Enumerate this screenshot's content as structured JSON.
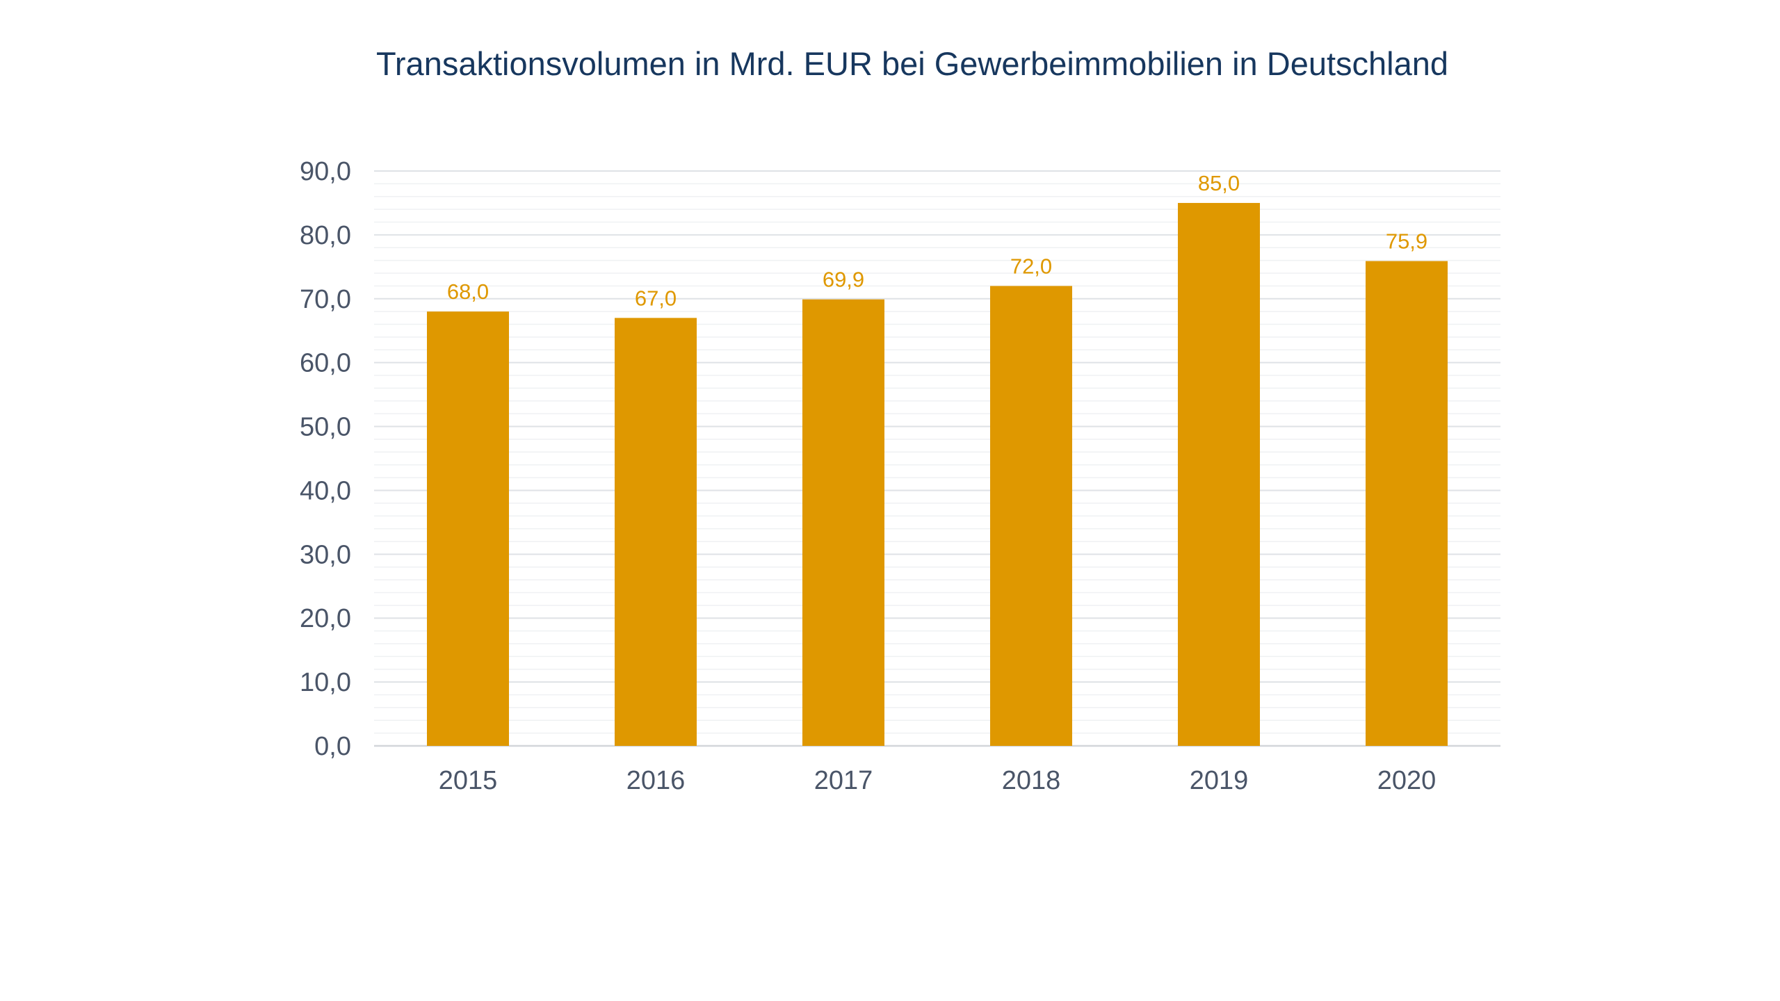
{
  "chart_data": {
    "type": "bar",
    "title": "Transaktionsvolumen in Mrd. EUR bei Gewerbeimmobilien in Deutschland",
    "categories": [
      "2015",
      "2016",
      "2017",
      "2018",
      "2019",
      "2020"
    ],
    "values": [
      68.0,
      67.0,
      69.9,
      72.0,
      85.0,
      75.9
    ],
    "value_labels": [
      "68,0",
      "67,0",
      "69,9",
      "72,0",
      "85,0",
      "75,9"
    ],
    "ylim": [
      0,
      90
    ],
    "ymajor_step": 10,
    "yminor_step": 2,
    "y_tick_labels": [
      "0,0",
      "10,0",
      "20,0",
      "30,0",
      "40,0",
      "50,0",
      "60,0",
      "70,0",
      "80,0",
      "90,0"
    ],
    "xlabel": "",
    "ylabel": "",
    "grid": true,
    "legend": "none",
    "colors": {
      "bar": "#df9800",
      "data_label": "#df9800",
      "title": "#17375e",
      "tick_label": "#4a5568",
      "grid_major": "#dfe2e6",
      "grid_minor": "#eff1f3",
      "axis": "#d3d6da"
    }
  }
}
